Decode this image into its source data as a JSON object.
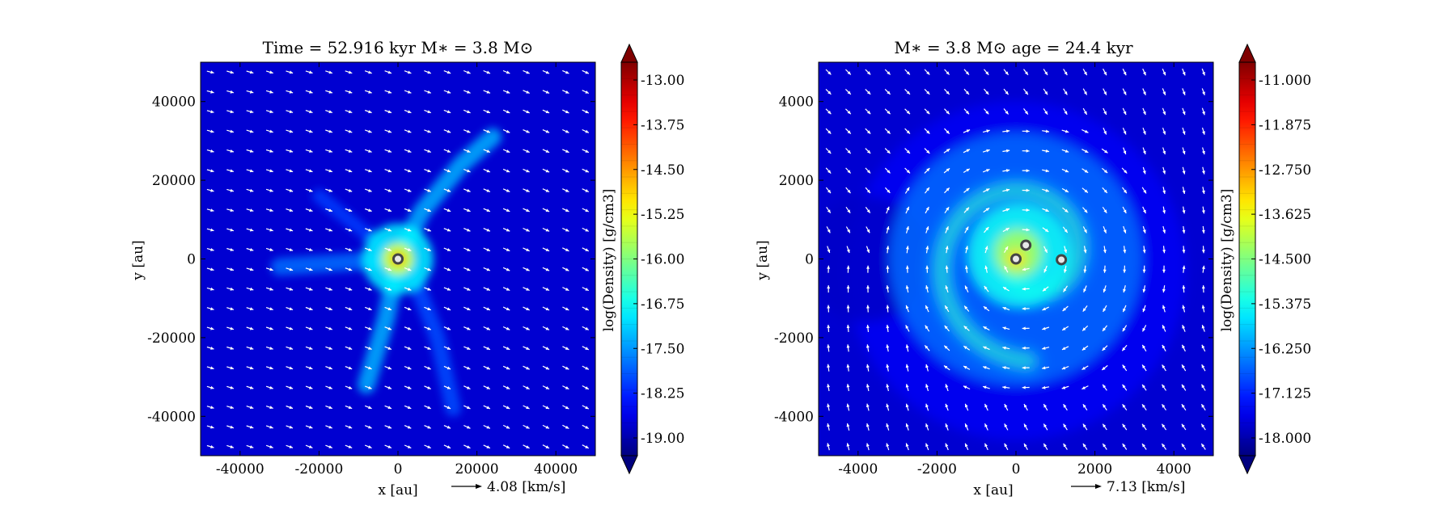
{
  "colors": {
    "background": "#00008f",
    "arrow": "#ffffff",
    "sink_fill": "#e8e8e8",
    "sink_stroke": "#444444"
  },
  "colormap": "jet",
  "chart_data": [
    {
      "type": "heatmap",
      "subtype": "density-map-with-velocity-vectors",
      "title": "Time = 52.916 kyr    M∗ = 3.8 M⊙",
      "xlabel": "x [au]",
      "ylabel": "y [au]",
      "xlim": [
        -50000,
        50000
      ],
      "ylim": [
        -50000,
        50000
      ],
      "xticks": [
        -40000,
        -20000,
        0,
        20000,
        40000
      ],
      "yticks": [
        -40000,
        -20000,
        0,
        20000,
        40000
      ],
      "colorbar": {
        "label": "log(Density) [g/cm3]",
        "range": [
          -19.0,
          -13.0
        ],
        "ticks": [
          "-13.00",
          "-13.75",
          "-14.50",
          "-15.25",
          "-16.00",
          "-16.75",
          "-17.50",
          "-18.25",
          "-19.00"
        ],
        "extend": "both"
      },
      "vector_key": "4.08 [km/s]",
      "sinks": [
        {
          "x": 0,
          "y": 0
        }
      ],
      "features": [
        {
          "kind": "filament",
          "points": [
            [
              -8000,
              -32000
            ],
            [
              -3000,
              -15000
            ],
            [
              0,
              0
            ],
            [
              6000,
              12000
            ],
            [
              16000,
              24000
            ],
            [
              24000,
              31000
            ]
          ],
          "width": 4500,
          "value": -17.2
        },
        {
          "kind": "filament",
          "points": [
            [
              -30000,
              -2000
            ],
            [
              -15000,
              -1000
            ],
            [
              0,
              0
            ]
          ],
          "width": 4500,
          "value": -17.6
        },
        {
          "kind": "filament",
          "points": [
            [
              3000,
              -2000
            ],
            [
              10000,
              -20000
            ],
            [
              14000,
              -38000
            ]
          ],
          "width": 4000,
          "value": -17.8
        },
        {
          "kind": "filament",
          "points": [
            [
              -20000,
              16000
            ],
            [
              -10000,
              8000
            ],
            [
              0,
              0
            ]
          ],
          "width": 3500,
          "value": -17.9
        },
        {
          "kind": "blob",
          "x": 0,
          "y": 0,
          "r": 9000,
          "value": -16.8
        },
        {
          "kind": "blob",
          "x": 0,
          "y": 0,
          "r": 4000,
          "value": -15.4
        },
        {
          "kind": "blob",
          "x": 0,
          "y": 0,
          "r": 1500,
          "value": -14.6
        }
      ]
    },
    {
      "type": "heatmap",
      "subtype": "density-map-with-velocity-vectors",
      "title": "M∗ = 3.8 M⊙        age = 24.4 kyr",
      "xlabel": "x [au]",
      "ylabel": "y [au]",
      "xlim": [
        -5000,
        5000
      ],
      "ylim": [
        -5000,
        5000
      ],
      "xticks": [
        -4000,
        -2000,
        0,
        2000,
        4000
      ],
      "yticks": [
        -4000,
        -2000,
        0,
        2000,
        4000
      ],
      "colorbar": {
        "label": "log(Density) [g/cm3]",
        "range": [
          -18.0,
          -11.0
        ],
        "ticks": [
          "-11.000",
          "-11.875",
          "-12.750",
          "-13.625",
          "-14.500",
          "-15.375",
          "-16.250",
          "-17.125",
          "-18.000"
        ],
        "extend": "both"
      },
      "vector_key": "7.13 [km/s]",
      "sinks": [
        {
          "x": 0,
          "y": 0
        },
        {
          "x": 250,
          "y": 350
        },
        {
          "x": 1150,
          "y": -20
        }
      ],
      "features": [
        {
          "kind": "blob",
          "x": 0,
          "y": -300,
          "r": 4300,
          "value": -17.2
        },
        {
          "kind": "blob",
          "x": -3800,
          "y": 0,
          "r": 1600,
          "value": -17.5
        },
        {
          "kind": "blob",
          "x": 0,
          "y": 0,
          "r": 3200,
          "value": -16.4
        },
        {
          "kind": "spiral",
          "cx": 300,
          "cy": 0,
          "a": 380,
          "b": 2600,
          "turns": 1.25,
          "width": 380,
          "value": -15.0
        },
        {
          "kind": "blob",
          "x": 100,
          "y": 100,
          "r": 1300,
          "value": -15.3
        },
        {
          "kind": "blob",
          "x": 50,
          "y": 150,
          "r": 600,
          "value": -14.2
        },
        {
          "kind": "blob",
          "x": 0,
          "y": 0,
          "r": 250,
          "value": -13.4
        }
      ]
    }
  ]
}
